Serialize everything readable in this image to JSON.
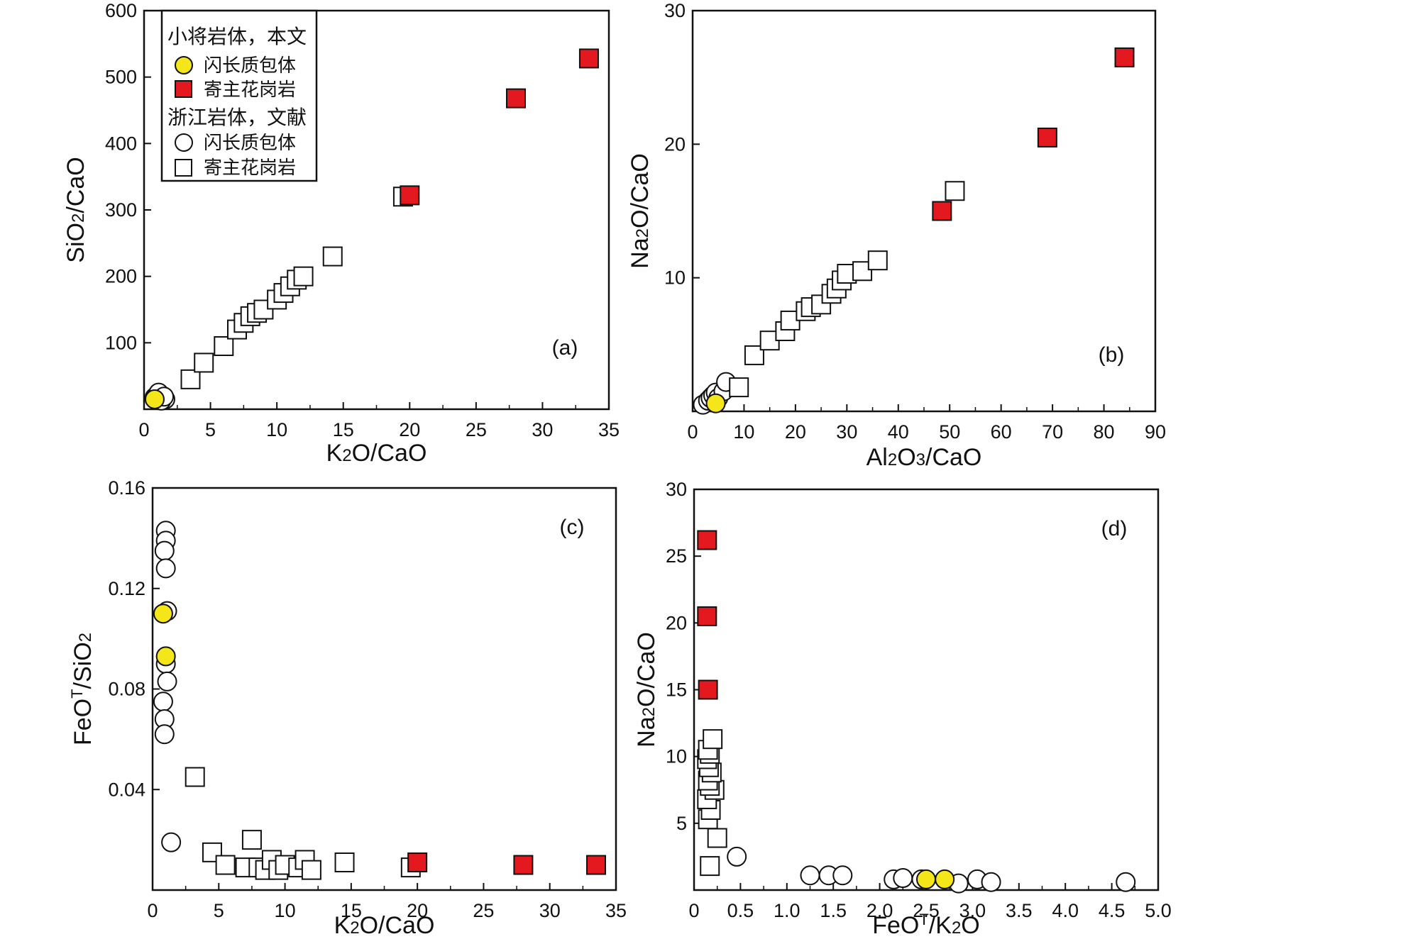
{
  "colors": {
    "yellow": "#f5e61a",
    "red": "#e3191f",
    "black": "#111111",
    "white": "#ffffff"
  },
  "legend": {
    "group1_title": "小将岩体，本文",
    "group1_enclave": "闪长质包体",
    "group1_host": "寄主花岗岩",
    "group2_title": "浙江岩体，文献",
    "group2_enclave": "闪长质包体",
    "group2_host": "寄主花岗岩"
  },
  "chart_data": [
    {
      "id": "a",
      "type": "scatter",
      "panel_label": "(a)",
      "xlabel": {
        "parts": [
          [
            "K",
            ""
          ],
          [
            "2",
            "sub"
          ],
          [
            "O/CaO",
            ""
          ]
        ]
      },
      "ylabel": {
        "parts": [
          [
            "SiO",
            ""
          ],
          [
            "2",
            "sub"
          ],
          [
            "/CaO",
            ""
          ]
        ]
      },
      "xlim": [
        0,
        35
      ],
      "ylim": [
        0,
        600
      ],
      "xticks": [
        0,
        5,
        10,
        15,
        20,
        25,
        30,
        35
      ],
      "yticks": [
        100,
        200,
        300,
        400,
        500,
        600
      ],
      "series": [
        {
          "name": "浙江岩体 闪长质包体",
          "marker": "circle",
          "fill": "white",
          "points": [
            [
              0.8,
              18
            ],
            [
              1.0,
              22
            ],
            [
              1.2,
              16
            ],
            [
              1.4,
              20
            ],
            [
              1.6,
              15
            ],
            [
              1.1,
              25
            ],
            [
              1.3,
              13
            ],
            [
              1.5,
              19
            ]
          ]
        },
        {
          "name": "浙江岩体 寄主花岗岩",
          "marker": "square",
          "fill": "white",
          "points": [
            [
              3.5,
              45
            ],
            [
              4.5,
              70
            ],
            [
              6,
              95
            ],
            [
              7,
              120
            ],
            [
              7.5,
              130
            ],
            [
              8,
              140
            ],
            [
              8.5,
              145
            ],
            [
              9,
              150
            ],
            [
              10,
              165
            ],
            [
              10.5,
              175
            ],
            [
              11,
              185
            ],
            [
              11.5,
              195
            ],
            [
              12,
              200
            ],
            [
              14.2,
              230
            ],
            [
              19.5,
              320
            ]
          ]
        },
        {
          "name": "小将岩体 闪长质包体",
          "marker": "circle",
          "fill": "yellow",
          "points": [
            [
              0.8,
              15
            ]
          ]
        },
        {
          "name": "小将岩体 寄主花岗岩",
          "marker": "square",
          "fill": "red",
          "points": [
            [
              20,
              322
            ],
            [
              28,
              468
            ],
            [
              33.5,
              528
            ]
          ]
        }
      ]
    },
    {
      "id": "b",
      "type": "scatter",
      "panel_label": "(b)",
      "xlabel": {
        "parts": [
          [
            "Al",
            ""
          ],
          [
            "2",
            "sub"
          ],
          [
            "O",
            ""
          ],
          [
            "3",
            "sub"
          ],
          [
            "/CaO",
            ""
          ]
        ]
      },
      "ylabel": {
        "parts": [
          [
            "Na",
            ""
          ],
          [
            "2",
            "sub"
          ],
          [
            "O/CaO",
            ""
          ]
        ]
      },
      "xlim": [
        0,
        90
      ],
      "ylim": [
        0,
        30
      ],
      "xticks": [
        0,
        10,
        20,
        30,
        40,
        50,
        60,
        70,
        80,
        90
      ],
      "yticks": [
        10,
        20,
        30
      ],
      "series": [
        {
          "name": "浙江岩体 闪长质包体",
          "marker": "circle",
          "fill": "white",
          "points": [
            [
              2,
              0.5
            ],
            [
              3,
              0.8
            ],
            [
              3.5,
              1.0
            ],
            [
              4,
              1.2
            ],
            [
              4.5,
              1.4
            ],
            [
              5,
              1.0
            ],
            [
              6,
              1.5
            ],
            [
              6.5,
              2.2
            ]
          ]
        },
        {
          "name": "浙江岩体 寄主花岗岩",
          "marker": "square",
          "fill": "white",
          "points": [
            [
              9,
              1.8
            ],
            [
              12,
              4.2
            ],
            [
              15,
              5.3
            ],
            [
              18,
              6.0
            ],
            [
              19,
              6.8
            ],
            [
              22,
              7.5
            ],
            [
              23,
              7.8
            ],
            [
              25,
              8.0
            ],
            [
              27,
              8.8
            ],
            [
              28,
              9.2
            ],
            [
              29,
              9.8
            ],
            [
              30,
              10.3
            ],
            [
              33,
              10.5
            ],
            [
              36,
              11.3
            ],
            [
              51,
              16.5
            ]
          ]
        },
        {
          "name": "小将岩体 闪长质包体",
          "marker": "circle",
          "fill": "yellow",
          "points": [
            [
              4.5,
              0.6
            ]
          ]
        },
        {
          "name": "小将岩体 寄主花岗岩",
          "marker": "square",
          "fill": "red",
          "points": [
            [
              48.5,
              15.0
            ],
            [
              69,
              20.5
            ],
            [
              84,
              26.5
            ]
          ]
        }
      ]
    },
    {
      "id": "c",
      "type": "scatter",
      "panel_label": "(c)",
      "xlabel": {
        "parts": [
          [
            "K",
            ""
          ],
          [
            "2",
            "sub"
          ],
          [
            "O/CaO",
            ""
          ]
        ]
      },
      "ylabel": {
        "parts": [
          [
            "FeO",
            ""
          ],
          [
            "T",
            "sup"
          ],
          [
            "/SiO",
            ""
          ],
          [
            "2",
            "sub"
          ]
        ]
      },
      "xlim": [
        0,
        35
      ],
      "ylim": [
        0,
        0.16
      ],
      "xticks": [
        0,
        5,
        10,
        15,
        20,
        25,
        30,
        35
      ],
      "yticks": [
        0.04,
        0.08,
        0.12,
        0.16
      ],
      "yticklabels": [
        "0.04",
        "0.08",
        "0.12",
        "0.16"
      ],
      "series": [
        {
          "name": "浙江岩体 闪长质包体",
          "marker": "circle",
          "fill": "white",
          "points": [
            [
              1.0,
              0.143
            ],
            [
              1.0,
              0.139
            ],
            [
              0.9,
              0.135
            ],
            [
              1.0,
              0.128
            ],
            [
              1.1,
              0.111
            ],
            [
              1.0,
              0.09
            ],
            [
              1.1,
              0.083
            ],
            [
              0.8,
              0.075
            ],
            [
              0.9,
              0.068
            ],
            [
              0.9,
              0.062
            ],
            [
              1.4,
              0.019
            ]
          ]
        },
        {
          "name": "浙江岩体 寄主花岗岩",
          "marker": "square",
          "fill": "white",
          "points": [
            [
              3.2,
              0.045
            ],
            [
              4.5,
              0.015
            ],
            [
              5.5,
              0.01
            ],
            [
              7,
              0.009
            ],
            [
              7.5,
              0.02
            ],
            [
              8,
              0.009
            ],
            [
              8.5,
              0.008
            ],
            [
              9,
              0.012
            ],
            [
              9.5,
              0.008
            ],
            [
              10,
              0.01
            ],
            [
              11,
              0.009
            ],
            [
              11.5,
              0.012
            ],
            [
              12,
              0.008
            ],
            [
              14.5,
              0.011
            ],
            [
              19.5,
              0.009
            ]
          ]
        },
        {
          "name": "小将岩体 闪长质包体",
          "marker": "circle",
          "fill": "yellow",
          "points": [
            [
              0.8,
              0.11
            ],
            [
              1.0,
              0.093
            ]
          ]
        },
        {
          "name": "小将岩体 寄主花岗岩",
          "marker": "square",
          "fill": "red",
          "points": [
            [
              20,
              0.011
            ],
            [
              28,
              0.01
            ],
            [
              33.5,
              0.01
            ]
          ]
        }
      ]
    },
    {
      "id": "d",
      "type": "scatter",
      "panel_label": "(d)",
      "xlabel": {
        "parts": [
          [
            "FeO",
            ""
          ],
          [
            "T",
            "sup"
          ],
          [
            "/K",
            ""
          ],
          [
            "2",
            "sub"
          ],
          [
            "O",
            ""
          ]
        ]
      },
      "ylabel": {
        "parts": [
          [
            "Na",
            ""
          ],
          [
            "2",
            "sub"
          ],
          [
            "O/CaO",
            ""
          ]
        ]
      },
      "xlim": [
        0,
        5
      ],
      "ylim": [
        0,
        30
      ],
      "xticks": [
        0,
        0.5,
        1.0,
        1.5,
        2.0,
        2.5,
        3.0,
        3.5,
        4.0,
        4.5,
        5.0
      ],
      "xticklabels": [
        "0",
        "0.5",
        "1.0",
        "1.5",
        "2.0",
        "2.5",
        "3.0",
        "3.5",
        "4.0",
        "4.5",
        "5.0"
      ],
      "yticks": [
        5,
        10,
        15,
        20,
        25,
        30
      ],
      "series": [
        {
          "name": "浙江岩体 闪长质包体",
          "marker": "circle",
          "fill": "white",
          "points": [
            [
              0.46,
              2.5
            ],
            [
              1.25,
              1.1
            ],
            [
              1.45,
              1.1
            ],
            [
              1.6,
              1.1
            ],
            [
              2.15,
              0.8
            ],
            [
              2.25,
              0.9
            ],
            [
              2.45,
              0.8
            ],
            [
              2.85,
              0.5
            ],
            [
              3.05,
              0.8
            ],
            [
              3.2,
              0.6
            ],
            [
              4.65,
              0.6
            ]
          ]
        },
        {
          "name": "浙江岩体 寄主花岗岩",
          "marker": "square",
          "fill": "white",
          "points": [
            [
              0.17,
              1.8
            ],
            [
              0.25,
              3.9
            ],
            [
              0.15,
              5.3
            ],
            [
              0.18,
              6.0
            ],
            [
              0.14,
              6.8
            ],
            [
              0.22,
              7.5
            ],
            [
              0.17,
              7.8
            ],
            [
              0.15,
              8.2
            ],
            [
              0.19,
              8.8
            ],
            [
              0.16,
              9.2
            ],
            [
              0.14,
              9.8
            ],
            [
              0.17,
              10.2
            ],
            [
              0.15,
              10.5
            ],
            [
              0.2,
              11.3
            ]
          ]
        },
        {
          "name": "小将岩体 闪长质包体",
          "marker": "circle",
          "fill": "yellow",
          "points": [
            [
              2.5,
              0.8
            ],
            [
              2.7,
              0.8
            ]
          ]
        },
        {
          "name": "小将岩体 寄主花岗岩",
          "marker": "square",
          "fill": "red",
          "points": [
            [
              0.15,
              15.0
            ],
            [
              0.14,
              20.5
            ],
            [
              0.14,
              26.2
            ]
          ]
        }
      ]
    }
  ]
}
